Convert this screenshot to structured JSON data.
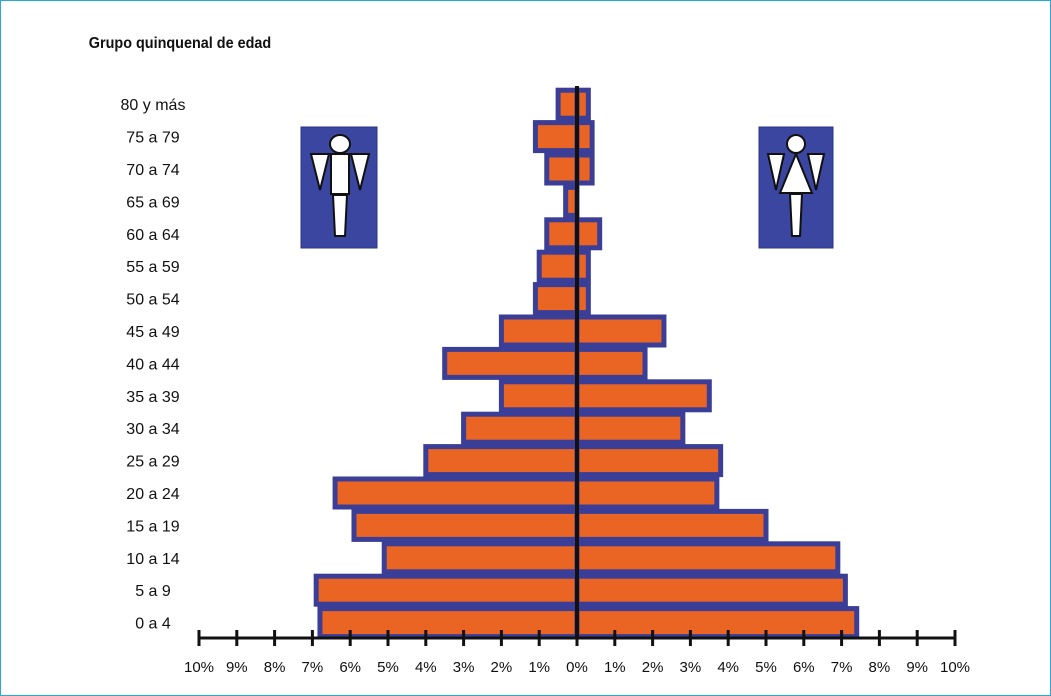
{
  "chart_data": {
    "type": "bar",
    "orientation": "horizontal",
    "subtype": "population-pyramid",
    "title": "Grupo quinquenal de edad",
    "categories": [
      "0 a 4",
      "5 a 9",
      "10  a 14",
      "15 a 19",
      "20 a 24",
      "25 a 29",
      "30 a 34",
      "35 a 39",
      "40 a 44",
      "45 a 49",
      "50 a 54",
      "55 a 59",
      "60 a 64",
      "65 a 69",
      "70 a 74",
      "75 a 79",
      "80 y más"
    ],
    "series": [
      {
        "side": "left",
        "icon": "male-icon",
        "values": [
          6.8,
          6.9,
          5.1,
          5.9,
          6.4,
          4.0,
          3.0,
          2.0,
          3.5,
          2.0,
          1.1,
          1.0,
          0.8,
          0.3,
          0.8,
          1.1,
          0.5
        ]
      },
      {
        "side": "right",
        "icon": "female-icon",
        "values": [
          7.4,
          7.1,
          6.9,
          5.0,
          3.7,
          3.8,
          2.8,
          3.5,
          1.8,
          2.3,
          0.3,
          0.3,
          0.6,
          0.0,
          0.4,
          0.4,
          0.3
        ]
      }
    ],
    "x_ticks": [
      "10%",
      "9%",
      "8%",
      "7%",
      "6%",
      "5%",
      "4%",
      "3%",
      "2%",
      "1%",
      "0%",
      "1%",
      "2%",
      "3%",
      "4%",
      "5%",
      "6%",
      "7%",
      "8%",
      "9%",
      "10%"
    ],
    "xlim": [
      -10,
      10
    ],
    "colors": {
      "bar_fill": "#ea6424",
      "bar_border": "#3a3e96",
      "icon_bg": "#3a46a0",
      "frame": "#2aa8d8",
      "axis": "#111111"
    }
  }
}
